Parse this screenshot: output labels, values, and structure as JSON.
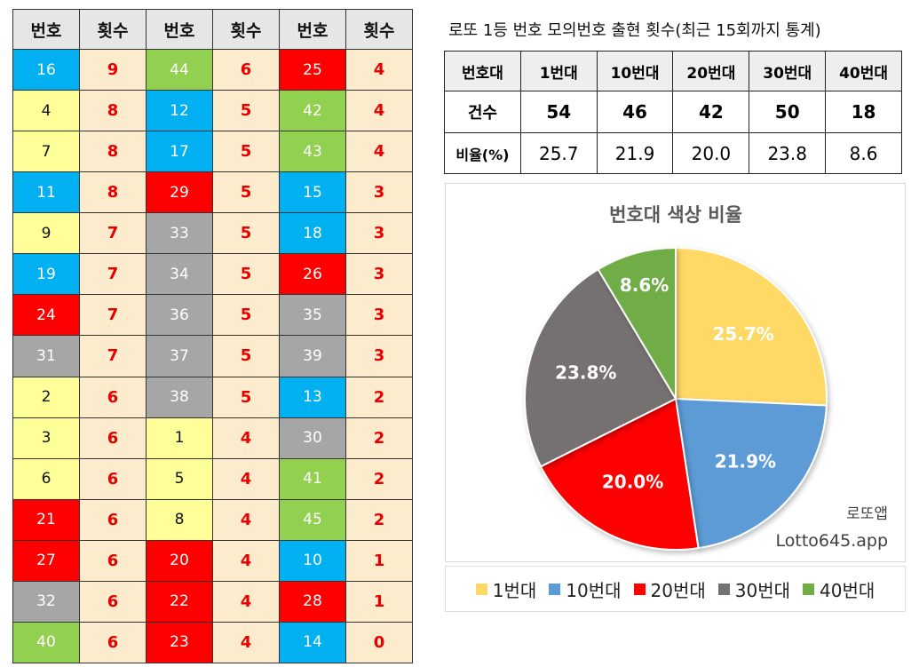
{
  "left_table": {
    "headers": [
      "번호",
      "횟수",
      "번호",
      "횟수",
      "번호",
      "횟수"
    ],
    "rows": [
      [
        {
          "n": "16",
          "c": "9"
        },
        {
          "n": "44",
          "c": "6"
        },
        {
          "n": "25",
          "c": "4"
        }
      ],
      [
        {
          "n": "4",
          "c": "8"
        },
        {
          "n": "12",
          "c": "5"
        },
        {
          "n": "42",
          "c": "4"
        }
      ],
      [
        {
          "n": "7",
          "c": "8"
        },
        {
          "n": "17",
          "c": "5"
        },
        {
          "n": "43",
          "c": "4"
        }
      ],
      [
        {
          "n": "11",
          "c": "8"
        },
        {
          "n": "29",
          "c": "5"
        },
        {
          "n": "15",
          "c": "3"
        }
      ],
      [
        {
          "n": "9",
          "c": "7"
        },
        {
          "n": "33",
          "c": "5"
        },
        {
          "n": "18",
          "c": "3"
        }
      ],
      [
        {
          "n": "19",
          "c": "7"
        },
        {
          "n": "34",
          "c": "5"
        },
        {
          "n": "26",
          "c": "3"
        }
      ],
      [
        {
          "n": "24",
          "c": "7"
        },
        {
          "n": "36",
          "c": "5"
        },
        {
          "n": "35",
          "c": "3"
        }
      ],
      [
        {
          "n": "31",
          "c": "7"
        },
        {
          "n": "37",
          "c": "5"
        },
        {
          "n": "39",
          "c": "3"
        }
      ],
      [
        {
          "n": "2",
          "c": "6"
        },
        {
          "n": "38",
          "c": "5"
        },
        {
          "n": "13",
          "c": "2"
        }
      ],
      [
        {
          "n": "3",
          "c": "6"
        },
        {
          "n": "1",
          "c": "4"
        },
        {
          "n": "30",
          "c": "2"
        }
      ],
      [
        {
          "n": "6",
          "c": "6"
        },
        {
          "n": "5",
          "c": "4"
        },
        {
          "n": "41",
          "c": "2"
        }
      ],
      [
        {
          "n": "21",
          "c": "6"
        },
        {
          "n": "8",
          "c": "4"
        },
        {
          "n": "45",
          "c": "2"
        }
      ],
      [
        {
          "n": "27",
          "c": "6"
        },
        {
          "n": "20",
          "c": "4"
        },
        {
          "n": "10",
          "c": "1"
        }
      ],
      [
        {
          "n": "32",
          "c": "6"
        },
        {
          "n": "22",
          "c": "4"
        },
        {
          "n": "28",
          "c": "1"
        }
      ],
      [
        {
          "n": "40",
          "c": "6"
        },
        {
          "n": "23",
          "c": "4"
        },
        {
          "n": "14",
          "c": "0"
        }
      ]
    ]
  },
  "range_colors": {
    "1": "#ffff99",
    "10": "#00b0f0",
    "20": "#ff0000",
    "30": "#a6a6a6",
    "40": "#92d050"
  },
  "stats": {
    "title": "로또 1등 번호 모의번호 출현 횟수(최근 15회까지 통계)",
    "header_label": "번호대",
    "ranges": [
      "1번대",
      "10번대",
      "20번대",
      "30번대",
      "40번대"
    ],
    "count_label": "건수",
    "counts": [
      "54",
      "46",
      "42",
      "50",
      "18"
    ],
    "ratio_label": "비율(%)",
    "ratios": [
      "25.7",
      "21.9",
      "20.0",
      "23.8",
      "8.6"
    ]
  },
  "chart_data": {
    "type": "pie",
    "title": "번호대 색상 비율",
    "categories": [
      "1번대",
      "10번대",
      "20번대",
      "30번대",
      "40번대"
    ],
    "values": [
      25.7,
      21.9,
      20.0,
      23.8,
      8.6
    ],
    "labels": [
      "25.7%",
      "21.9%",
      "20.0%",
      "23.8%",
      "8.6%"
    ],
    "colors": [
      "#ffd966",
      "#5b9bd5",
      "#ff0000",
      "#767171",
      "#70ad47"
    ],
    "legend_position": "bottom"
  },
  "watermark": {
    "line1": "로또앱",
    "line2": "Lotto645.app"
  }
}
